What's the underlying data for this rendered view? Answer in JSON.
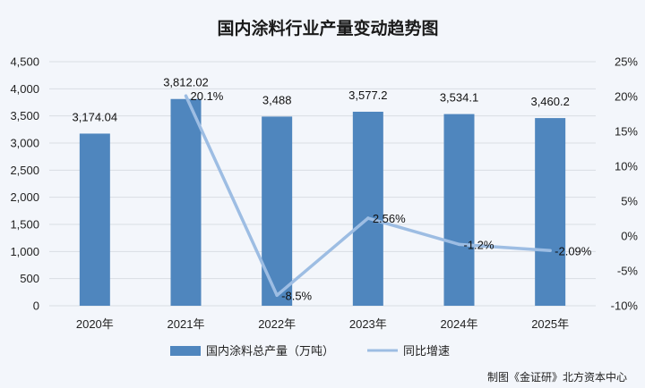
{
  "chart_data": {
    "type": "bar",
    "title": "国内涂料行业产量变动趋势图",
    "categories": [
      "2020年",
      "2021年",
      "2022年",
      "2023年",
      "2024年",
      "2025年"
    ],
    "series": [
      {
        "name": "国内涂料总产量（万吨）",
        "type": "bar",
        "axis": "left",
        "values": [
          3174.04,
          3812.02,
          3488,
          3577.2,
          3534.1,
          3460.2
        ],
        "labels": [
          "3,174.04",
          "3,812.02",
          "3,488",
          "3,577.2",
          "3,534.1",
          "3,460.2"
        ],
        "color": "#4f86be"
      },
      {
        "name": "同比增速",
        "type": "line",
        "axis": "right",
        "values": [
          null,
          20.1,
          -8.5,
          2.56,
          -1.2,
          -2.09
        ],
        "labels": [
          "",
          "20.1%",
          "-8.5%",
          "2.56%",
          "-1.2%",
          "-2.09%"
        ],
        "color": "#9dbde3"
      }
    ],
    "y_left": {
      "lim": [
        0,
        4500
      ],
      "ticks": [
        0,
        500,
        1000,
        1500,
        2000,
        2500,
        3000,
        3500,
        4000,
        4500
      ],
      "tick_labels": [
        "0",
        "500",
        "1,000",
        "1,500",
        "2,000",
        "2,500",
        "3,000",
        "3,500",
        "4,000",
        "4,500"
      ]
    },
    "y_right": {
      "lim": [
        -10,
        25
      ],
      "ticks": [
        -10,
        -5,
        0,
        5,
        10,
        15,
        20,
        25
      ],
      "tick_labels": [
        "-10%",
        "-5%",
        "0%",
        "5%",
        "10%",
        "15%",
        "20%",
        "25%"
      ]
    },
    "grid": true,
    "legend_position": "bottom"
  },
  "source_text": "制图《金证研》北方资本中心"
}
